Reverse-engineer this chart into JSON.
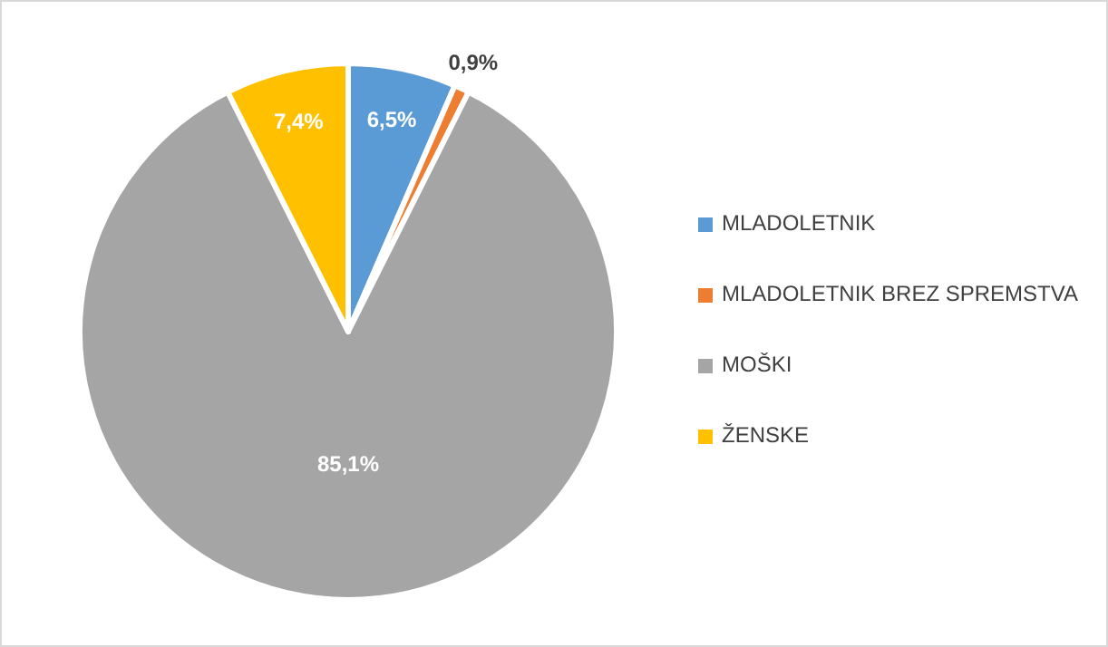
{
  "chart_data": {
    "type": "pie",
    "categories": [
      "MLADOLETNIK",
      "MLADOLETNIK BREZ SPREMSTVA",
      "MOŠKI",
      "ŽENSKE"
    ],
    "values": [
      6.5,
      0.9,
      85.1,
      7.4
    ],
    "colors": [
      "#5b9bd5",
      "#ed7d31",
      "#a5a5a5",
      "#ffc000"
    ],
    "value_labels": [
      "6,5%",
      "0,9%",
      "85,1%",
      "7,4%"
    ],
    "legend": "right"
  }
}
